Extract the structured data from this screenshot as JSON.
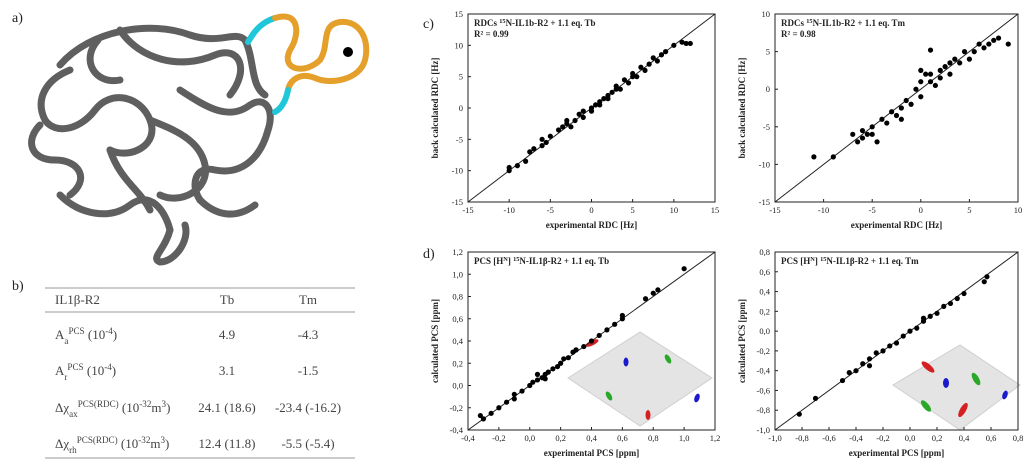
{
  "panel_labels": {
    "a": "a)",
    "b": "b)",
    "c": "c)",
    "d": "d)"
  },
  "table": {
    "header": [
      "IL1β-R2",
      "Tb",
      "Tm"
    ],
    "rows": [
      {
        "label": [
          {
            "text": "A"
          },
          {
            "text": "a",
            "sub": true
          },
          {
            "text": "PCS",
            "sup": true
          },
          {
            "text": " (10"
          },
          {
            "text": "-4",
            "sup": true
          },
          {
            "text": ")"
          }
        ],
        "cells": [
          "4.9",
          "-4.3"
        ]
      },
      {
        "label": [
          {
            "text": "A"
          },
          {
            "text": "r",
            "sub": true
          },
          {
            "text": "PCS",
            "sup": true
          },
          {
            "text": " (10"
          },
          {
            "text": "-4",
            "sup": true
          },
          {
            "text": ")"
          }
        ],
        "cells": [
          "3.1",
          "-1.5"
        ]
      },
      {
        "label": [
          {
            "text": "Δχ"
          },
          {
            "text": "ax",
            "sub": true
          },
          {
            "text": "PCS(RDC)",
            "sup": true
          },
          {
            "text": " (10"
          },
          {
            "text": "-32",
            "sup": true
          },
          {
            "text": "m"
          },
          {
            "text": "3",
            "sup": true
          },
          {
            "text": ")"
          }
        ],
        "cells": [
          "24.1 (18.6)",
          "-23.4 (-16.2)"
        ]
      },
      {
        "label": [
          {
            "text": "Δχ"
          },
          {
            "text": "rh",
            "sub": true
          },
          {
            "text": "PCS(RDC)",
            "sup": true
          },
          {
            "text": " (10"
          },
          {
            "text": "-32",
            "sup": true
          },
          {
            "text": "m"
          },
          {
            "text": "3",
            "sup": true
          },
          {
            "text": ")"
          }
        ],
        "cells": [
          "12.4 (11.8)",
          "-5.5 (-5.4)"
        ]
      }
    ]
  },
  "chart_data": [
    {
      "type": "scatter",
      "annotation": [
        {
          "text": "RDCs "
        },
        {
          "text": "15",
          "sup": true
        },
        {
          "text": "N-IL1b-R2 + 1.1 eq. Tb"
        }
      ],
      "r_squared": "R² = 0.99",
      "xlabel": "experimental RDC [Hz]",
      "ylabel": "back calculated RDC [Hz]",
      "color": "#000000",
      "xlim": [
        -15,
        15
      ],
      "ylim": [
        -15,
        15
      ],
      "xticks": [
        -15,
        -10,
        -5,
        0,
        5,
        10,
        15
      ],
      "yticks": [
        -15,
        -10,
        -5,
        0,
        5,
        10,
        15
      ],
      "x": [
        -10,
        -10,
        -9,
        -8,
        -7.5,
        -7,
        -6,
        -6,
        -5.5,
        -5,
        -4,
        -3.5,
        -3,
        -3,
        -2.5,
        -2,
        -1.5,
        -1,
        -1,
        0,
        0,
        0.5,
        1,
        1,
        1.5,
        2,
        2,
        2.5,
        3,
        3,
        3.5,
        4,
        4.5,
        5,
        5,
        5.5,
        6,
        6.5,
        7,
        7.5,
        8,
        8.5,
        9,
        10,
        11,
        11.5,
        12
      ],
      "values": [
        -10,
        -9.5,
        -9.2,
        -8.5,
        -7,
        -6.5,
        -6,
        -5,
        -5.5,
        -4.5,
        -3.5,
        -3,
        -2.5,
        -2,
        -3,
        -2,
        -1,
        -0.5,
        -1.5,
        0,
        -0.5,
        0.5,
        1,
        0.5,
        1.5,
        2,
        1.5,
        2.5,
        3,
        3.5,
        3,
        4.5,
        4,
        5,
        5.5,
        5,
        6.5,
        6,
        7,
        8,
        7.5,
        8.5,
        9,
        10,
        10.5,
        10.3,
        10.3
      ]
    },
    {
      "type": "scatter",
      "annotation": [
        {
          "text": "RDCs "
        },
        {
          "text": "15",
          "sup": true
        },
        {
          "text": "N-IL1b-R2 + 1.1 eq. Tm"
        }
      ],
      "r_squared": "R² = 0.98",
      "xlabel": "experimental RDC [Hz]",
      "ylabel": "back calculated RDC [Hz]",
      "color": "#000000",
      "xlim": [
        -15,
        10
      ],
      "ylim": [
        -15,
        10
      ],
      "xticks": [
        -15,
        -10,
        -5,
        0,
        5,
        10
      ],
      "yticks": [
        -15,
        -10,
        -5,
        0,
        5,
        10
      ],
      "x": [
        -11,
        -9,
        -7,
        -6.5,
        -6,
        -6,
        -5.5,
        -5,
        -5,
        -4.5,
        -4,
        -3.5,
        -3,
        -2.5,
        -2,
        -1.5,
        -1,
        -0.5,
        0,
        0,
        0.5,
        1,
        1,
        1.5,
        2,
        2,
        2.5,
        3,
        3,
        3.5,
        4,
        4.5,
        5,
        5.5,
        6,
        6.5,
        7,
        7.5,
        8,
        9,
        1,
        0,
        -2
      ],
      "values": [
        -9,
        -9,
        -6,
        -7,
        -5.5,
        -6.5,
        -6,
        -6,
        -5,
        -7,
        -4,
        -4.5,
        -3,
        -3.5,
        -2.5,
        -1.5,
        -2,
        0,
        1,
        -1,
        2,
        1,
        2,
        0.5,
        2.5,
        1.5,
        3,
        2,
        3.5,
        4,
        3.5,
        5,
        4,
        5,
        6,
        5.5,
        6,
        6.5,
        6.8,
        6,
        5.2,
        2.5,
        -4
      ]
    },
    {
      "type": "scatter",
      "annotation": [
        {
          "text": "PCS [H"
        },
        {
          "text": "N",
          "sup": true
        },
        {
          "text": "] "
        },
        {
          "text": "15",
          "sup": true
        },
        {
          "text": "N-IL1β-R2 + 1.1 eq. Tb"
        }
      ],
      "xlabel": "experimental PCS [ppm]",
      "ylabel": "calculated PCS [ppm]",
      "color": "#000000",
      "xlim": [
        -0.4,
        1.2
      ],
      "ylim": [
        -0.4,
        1.2
      ],
      "xticks": [
        {
          "value": -0.4,
          "label": "-0,4"
        },
        {
          "value": -0.2,
          "label": "-0,2"
        },
        {
          "value": 0,
          "label": "0,0"
        },
        {
          "value": 0.2,
          "label": "0,2"
        },
        {
          "value": 0.4,
          "label": "0,4"
        },
        {
          "value": 0.6,
          "label": "0,6"
        },
        {
          "value": 0.8,
          "label": "0,8"
        },
        {
          "value": 1,
          "label": "1,0"
        },
        {
          "value": 1.2,
          "label": "1,2"
        }
      ],
      "yticks": [
        {
          "value": -0.4,
          "label": "-0,4"
        },
        {
          "value": -0.2,
          "label": "-0,2"
        },
        {
          "value": 0,
          "label": "0,0"
        },
        {
          "value": 0.2,
          "label": "0,2"
        },
        {
          "value": 0.4,
          "label": "0,4"
        },
        {
          "value": 0.6,
          "label": "0,6"
        },
        {
          "value": 0.8,
          "label": "0,8"
        },
        {
          "value": 1,
          "label": "1,0"
        },
        {
          "value": 1.2,
          "label": "1,2"
        }
      ],
      "x": [
        -0.32,
        -0.3,
        -0.25,
        -0.2,
        -0.15,
        -0.1,
        -0.05,
        0,
        0.02,
        0.05,
        0.08,
        0.1,
        0.12,
        0.15,
        0.18,
        0.2,
        0.22,
        0.25,
        0.28,
        0.3,
        0.35,
        0.4,
        0.45,
        0.5,
        0.55,
        0.6,
        0.6,
        0.75,
        0.8,
        0.83,
        1.0,
        -0.1,
        0.05,
        0.1
      ],
      "values": [
        -0.27,
        -0.3,
        -0.25,
        -0.2,
        -0.15,
        -0.08,
        -0.05,
        0,
        0.03,
        0.05,
        0.07,
        0.1,
        0.12,
        0.15,
        0.17,
        0.2,
        0.24,
        0.25,
        0.3,
        0.32,
        0.35,
        0.4,
        0.45,
        0.5,
        0.55,
        0.6,
        0.63,
        0.78,
        0.83,
        0.86,
        1.05,
        -0.12,
        0.1,
        0.06
      ]
    },
    {
      "type": "scatter",
      "annotation": [
        {
          "text": "PCS [H"
        },
        {
          "text": "N",
          "sup": true
        },
        {
          "text": "] "
        },
        {
          "text": "15",
          "sup": true
        },
        {
          "text": "N-IL1β-R2 + 1.1 eq. Tm"
        }
      ],
      "xlabel": "experimental PCS [ppm]",
      "ylabel": "calculated PCS [ppm]",
      "color": "#000000",
      "xlim": [
        -1.0,
        0.8
      ],
      "ylim": [
        -1.0,
        0.8
      ],
      "xticks": [
        {
          "value": -1,
          "label": "-1,0"
        },
        {
          "value": -0.8,
          "label": "-0,8"
        },
        {
          "value": -0.6,
          "label": "-0,6"
        },
        {
          "value": -0.4,
          "label": "-0,4"
        },
        {
          "value": -0.2,
          "label": "-0,2"
        },
        {
          "value": 0,
          "label": "0,0"
        },
        {
          "value": 0.2,
          "label": "0,2"
        },
        {
          "value": 0.4,
          "label": "0,4"
        },
        {
          "value": 0.6,
          "label": "0,6"
        },
        {
          "value": 0.8,
          "label": "0,8"
        }
      ],
      "yticks": [
        {
          "value": -1,
          "label": "-1,0"
        },
        {
          "value": -0.8,
          "label": "-0,8"
        },
        {
          "value": -0.6,
          "label": "-0,6"
        },
        {
          "value": -0.4,
          "label": "-0,4"
        },
        {
          "value": -0.2,
          "label": "-0,2"
        },
        {
          "value": 0,
          "label": "0,0"
        },
        {
          "value": 0.2,
          "label": "0,2"
        },
        {
          "value": 0.4,
          "label": "0,4"
        },
        {
          "value": 0.6,
          "label": "0,6"
        },
        {
          "value": 0.8,
          "label": "0,8"
        }
      ],
      "x": [
        -0.82,
        -0.7,
        -0.5,
        -0.45,
        -0.4,
        -0.35,
        -0.3,
        -0.25,
        -0.2,
        -0.15,
        -0.1,
        -0.05,
        0,
        0.05,
        0.1,
        0.15,
        0.2,
        0.25,
        0.3,
        0.35,
        0.4,
        0.55,
        0.57,
        -0.3,
        0.1
      ],
      "values": [
        -0.84,
        -0.68,
        -0.5,
        -0.42,
        -0.4,
        -0.33,
        -0.28,
        -0.22,
        -0.2,
        -0.15,
        -0.12,
        -0.05,
        0,
        0.03,
        0.1,
        0.15,
        0.18,
        0.25,
        0.28,
        0.33,
        0.38,
        0.5,
        0.55,
        -0.35,
        0.13
      ]
    }
  ]
}
